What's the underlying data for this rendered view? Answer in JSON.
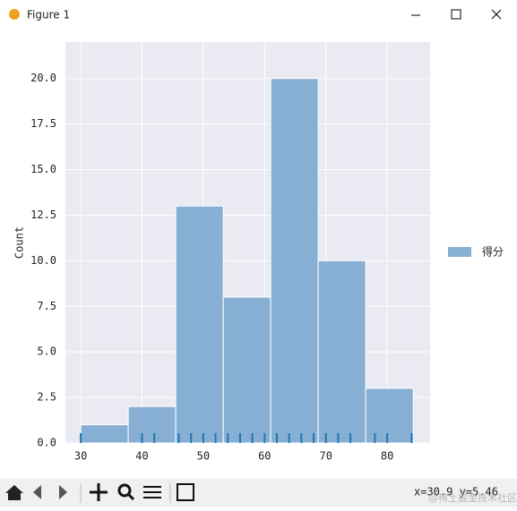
{
  "window": {
    "title": "Figure 1"
  },
  "chart_data": {
    "type": "histogram",
    "ylabel": "Count",
    "name": "得分",
    "color": "#86afd3",
    "legend": "right",
    "bins": [
      30,
      37.75,
      45.5,
      53.25,
      61,
      68.75,
      76.5,
      84.25
    ],
    "values": [
      1,
      2,
      13,
      8,
      20,
      10,
      3
    ],
    "rug": [
      30,
      40,
      42,
      46,
      48,
      50,
      52,
      54,
      56,
      58,
      60,
      62,
      64,
      66,
      68,
      70,
      72,
      74,
      78,
      80,
      84
    ],
    "rug_color": "#1f77b4",
    "xlim": [
      27.5,
      87
    ],
    "xticks": [
      30,
      40,
      50,
      60,
      70,
      80
    ],
    "ylim": [
      0,
      22
    ],
    "yticks": [
      {
        "value": 0,
        "label": "0.0"
      },
      2.5,
      {
        "value": 5,
        "label": "5.0"
      },
      {
        "value": 7.5,
        "label": "7.5"
      },
      {
        "value": 10,
        "label": "10.0"
      },
      {
        "value": 12.5,
        "label": "12.5"
      },
      {
        "value": 15,
        "label": "15.0"
      },
      {
        "value": 17.5,
        "label": "17.5"
      },
      {
        "value": 20,
        "label": "20.0"
      }
    ],
    "grid": true
  },
  "status": "x=30.9 y=5.46",
  "watermark": "@稀土掘金技术社区"
}
